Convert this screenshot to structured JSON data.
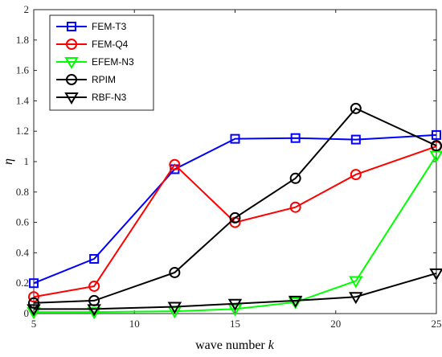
{
  "chart_data": {
    "type": "line",
    "xlabel": "wave number",
    "xlabel_var": "k",
    "ylabel": "η",
    "xlim": [
      5,
      25
    ],
    "ylim": [
      0,
      2
    ],
    "xticks": [
      5,
      10,
      15,
      20,
      25
    ],
    "yticks": [
      0,
      0.2,
      0.4,
      0.6,
      0.8,
      1,
      1.2,
      1.4,
      1.6,
      1.8,
      2
    ],
    "grid": false,
    "legend_position": "top-left",
    "x": [
      5,
      8,
      12,
      15,
      18,
      21,
      25
    ],
    "series": [
      {
        "name": "FEM-T3",
        "color": "#0000FF",
        "marker": "square",
        "values": [
          0.2,
          0.36,
          0.95,
          1.15,
          1.155,
          1.145,
          1.175
        ]
      },
      {
        "name": "FEM-Q4",
        "color": "#FF0000",
        "marker": "circle",
        "values": [
          0.11,
          0.18,
          0.98,
          0.6,
          0.7,
          0.915,
          1.1
        ]
      },
      {
        "name": "EFEM-N3",
        "color": "#00FF00",
        "marker": "triangle-down",
        "values": [
          0.01,
          0.01,
          0.015,
          0.03,
          0.075,
          0.215,
          1.04
        ]
      },
      {
        "name": "RPIM",
        "color": "#000000",
        "marker": "circle",
        "values": [
          0.07,
          0.085,
          0.27,
          0.63,
          0.89,
          1.35,
          1.105
        ]
      },
      {
        "name": "RBF-N3",
        "color": "#000000",
        "marker": "triangle-down",
        "values": [
          0.03,
          0.03,
          0.045,
          0.065,
          0.085,
          0.11,
          0.265
        ]
      }
    ]
  }
}
